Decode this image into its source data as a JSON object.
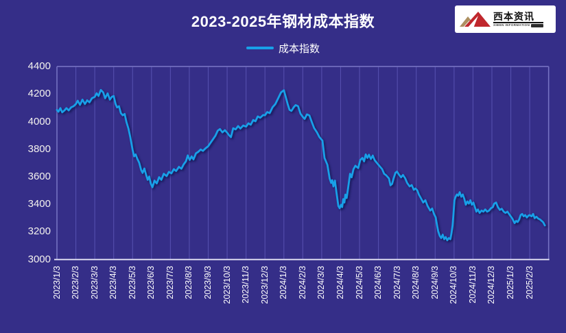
{
  "header": {
    "title": "2023-2025年钢材成本指数"
  },
  "legend": {
    "label": "成本指数"
  },
  "logo": {
    "name_zh": "西本资讯",
    "name_en": "XIBEN INFORMATION"
  },
  "colors": {
    "background": "#352E88",
    "gridline": "#554FAE",
    "plot_border": "#7672C2",
    "axis_line": "#DCDAF0",
    "text": "#FFFFFF",
    "line": "#18A0E8",
    "logo_red": "#C0272D",
    "logo_tan": "#AD9061"
  },
  "chart_data": {
    "type": "line",
    "title": "2023-2025年钢材成本指数",
    "xlabel": "",
    "ylabel": "",
    "ylim": [
      3000,
      4400
    ],
    "ytick_step": 200,
    "yticks": [
      4400,
      4200,
      4000,
      3800,
      3600,
      3400,
      3200,
      3000
    ],
    "grid": "vertical-monthly-only",
    "legend_position": "top-center",
    "categories": [
      "2023/1/3",
      "2023/2/3",
      "2023/3/3",
      "2023/4/3",
      "2023/5/3",
      "2023/6/3",
      "2023/7/3",
      "2023/8/3",
      "2023/9/3",
      "2023/10/3",
      "2023/11/3",
      "2023/12/3",
      "2024/1/3",
      "2024/2/3",
      "2024/3/3",
      "2024/4/3",
      "2024/5/3",
      "2024/6/3",
      "2024/7/3",
      "2024/8/3",
      "2024/9/3",
      "2024/10/3",
      "2024/11/3",
      "2024/12/3",
      "2025/1/3",
      "2025/2/3"
    ],
    "x_unit": "month-index, 0 = 2023/1/3, daily data approximated",
    "series": [
      {
        "name": "成本指数",
        "color": "#18A0E8",
        "points": [
          [
            0,
            4085
          ],
          [
            0.08,
            4072
          ],
          [
            0.18,
            4098
          ],
          [
            0.28,
            4068
          ],
          [
            0.4,
            4082
          ],
          [
            0.5,
            4098
          ],
          [
            0.62,
            4082
          ],
          [
            0.75,
            4104
          ],
          [
            0.88,
            4112
          ],
          [
            1,
            4128
          ],
          [
            1.1,
            4152
          ],
          [
            1.22,
            4122
          ],
          [
            1.35,
            4160
          ],
          [
            1.48,
            4128
          ],
          [
            1.6,
            4155
          ],
          [
            1.72,
            4140
          ],
          [
            1.85,
            4170
          ],
          [
            2,
            4180
          ],
          [
            2.1,
            4206
          ],
          [
            2.2,
            4186
          ],
          [
            2.32,
            4230
          ],
          [
            2.45,
            4212
          ],
          [
            2.55,
            4170
          ],
          [
            2.68,
            4205
          ],
          [
            2.8,
            4160
          ],
          [
            2.9,
            4180
          ],
          [
            3,
            4186
          ],
          [
            3.1,
            4128
          ],
          [
            3.18,
            4103
          ],
          [
            3.28,
            4112
          ],
          [
            3.38,
            4062
          ],
          [
            3.48,
            4046
          ],
          [
            3.58,
            4056
          ],
          [
            3.68,
            3996
          ],
          [
            3.78,
            3950
          ],
          [
            3.88,
            3885
          ],
          [
            4,
            3795
          ],
          [
            4.08,
            3748
          ],
          [
            4.16,
            3762
          ],
          [
            4.25,
            3730
          ],
          [
            4.35,
            3702
          ],
          [
            4.45,
            3650
          ],
          [
            4.53,
            3628
          ],
          [
            4.62,
            3660
          ],
          [
            4.72,
            3612
          ],
          [
            4.8,
            3578
          ],
          [
            4.88,
            3602
          ],
          [
            4.96,
            3552
          ],
          [
            5.05,
            3524
          ],
          [
            5.16,
            3572
          ],
          [
            5.28,
            3552
          ],
          [
            5.4,
            3597
          ],
          [
            5.52,
            3578
          ],
          [
            5.65,
            3622
          ],
          [
            5.8,
            3605
          ],
          [
            5.92,
            3636
          ],
          [
            6.05,
            3625
          ],
          [
            6.18,
            3656
          ],
          [
            6.3,
            3642
          ],
          [
            6.45,
            3672
          ],
          [
            6.58,
            3658
          ],
          [
            6.7,
            3690
          ],
          [
            6.82,
            3712
          ],
          [
            6.92,
            3755
          ],
          [
            7.02,
            3722
          ],
          [
            7.12,
            3748
          ],
          [
            7.22,
            3726
          ],
          [
            7.35,
            3770
          ],
          [
            7.48,
            3782
          ],
          [
            7.6,
            3798
          ],
          [
            7.72,
            3788
          ],
          [
            7.85,
            3806
          ],
          [
            8,
            3822
          ],
          [
            8.12,
            3846
          ],
          [
            8.25,
            3872
          ],
          [
            8.38,
            3898
          ],
          [
            8.5,
            3934
          ],
          [
            8.62,
            3946
          ],
          [
            8.75,
            3922
          ],
          [
            8.88,
            3938
          ],
          [
            9,
            3920
          ],
          [
            9.1,
            3902
          ],
          [
            9.2,
            3888
          ],
          [
            9.32,
            3952
          ],
          [
            9.45,
            3944
          ],
          [
            9.58,
            3968
          ],
          [
            9.7,
            3950
          ],
          [
            9.85,
            3972
          ],
          [
            10,
            3964
          ],
          [
            10.12,
            3988
          ],
          [
            10.25,
            3978
          ],
          [
            10.38,
            4012
          ],
          [
            10.5,
            4003
          ],
          [
            10.62,
            4038
          ],
          [
            10.75,
            4028
          ],
          [
            10.9,
            4048
          ],
          [
            11,
            4046
          ],
          [
            11.12,
            4070
          ],
          [
            11.25,
            4062
          ],
          [
            11.4,
            4104
          ],
          [
            11.55,
            4128
          ],
          [
            11.7,
            4170
          ],
          [
            11.85,
            4212
          ],
          [
            12,
            4228
          ],
          [
            12.08,
            4188
          ],
          [
            12.2,
            4128
          ],
          [
            12.3,
            4086
          ],
          [
            12.4,
            4078
          ],
          [
            12.52,
            4104
          ],
          [
            12.62,
            4120
          ],
          [
            12.75,
            4112
          ],
          [
            12.88,
            4058
          ],
          [
            13,
            4035
          ],
          [
            13.1,
            4020
          ],
          [
            13.22,
            4053
          ],
          [
            13.35,
            4045
          ],
          [
            13.48,
            3996
          ],
          [
            13.6,
            3953
          ],
          [
            13.75,
            3922
          ],
          [
            13.88,
            3888
          ],
          [
            14.04,
            3862
          ],
          [
            14.15,
            3737
          ],
          [
            14.3,
            3687
          ],
          [
            14.42,
            3588
          ],
          [
            14.5,
            3555
          ],
          [
            14.56,
            3575
          ],
          [
            14.62,
            3530
          ],
          [
            14.7,
            3572
          ],
          [
            14.78,
            3488
          ],
          [
            14.88,
            3388
          ],
          [
            14.95,
            3372
          ],
          [
            15.02,
            3397
          ],
          [
            15.08,
            3380
          ],
          [
            15.14,
            3438
          ],
          [
            15.2,
            3413
          ],
          [
            15.25,
            3471
          ],
          [
            15.32,
            3446
          ],
          [
            15.4,
            3522
          ],
          [
            15.5,
            3622
          ],
          [
            15.58,
            3596
          ],
          [
            15.68,
            3655
          ],
          [
            15.78,
            3680
          ],
          [
            15.93,
            3663
          ],
          [
            16.04,
            3722
          ],
          [
            16.15,
            3737
          ],
          [
            16.24,
            3712
          ],
          [
            16.33,
            3762
          ],
          [
            16.42,
            3737
          ],
          [
            16.5,
            3760
          ],
          [
            16.6,
            3729
          ],
          [
            16.7,
            3754
          ],
          [
            16.8,
            3721
          ],
          [
            16.9,
            3704
          ],
          [
            17.05,
            3679
          ],
          [
            17.2,
            3655
          ],
          [
            17.3,
            3622
          ],
          [
            17.4,
            3612
          ],
          [
            17.56,
            3588
          ],
          [
            17.64,
            3538
          ],
          [
            17.72,
            3548
          ],
          [
            17.8,
            3588
          ],
          [
            17.9,
            3629
          ],
          [
            17.98,
            3638
          ],
          [
            18.1,
            3613
          ],
          [
            18.2,
            3596
          ],
          [
            18.3,
            3613
          ],
          [
            18.42,
            3588
          ],
          [
            18.52,
            3555
          ],
          [
            18.65,
            3530
          ],
          [
            18.76,
            3540
          ],
          [
            18.87,
            3505
          ],
          [
            18.96,
            3515
          ],
          [
            19.05,
            3502
          ],
          [
            19.14,
            3471
          ],
          [
            19.24,
            3446
          ],
          [
            19.37,
            3413
          ],
          [
            19.48,
            3430
          ],
          [
            19.6,
            3388
          ],
          [
            19.74,
            3355
          ],
          [
            19.84,
            3370
          ],
          [
            19.94,
            3330
          ],
          [
            20.03,
            3305
          ],
          [
            20.1,
            3246
          ],
          [
            20.16,
            3205
          ],
          [
            20.24,
            3172
          ],
          [
            20.32,
            3155
          ],
          [
            20.4,
            3180
          ],
          [
            20.48,
            3147
          ],
          [
            20.56,
            3163
          ],
          [
            20.64,
            3139
          ],
          [
            20.72,
            3155
          ],
          [
            20.8,
            3147
          ],
          [
            20.86,
            3188
          ],
          [
            20.92,
            3247
          ],
          [
            20.97,
            3330
          ],
          [
            21.02,
            3430
          ],
          [
            21.08,
            3455
          ],
          [
            21.15,
            3472
          ],
          [
            21.22,
            3463
          ],
          [
            21.3,
            3488
          ],
          [
            21.38,
            3455
          ],
          [
            21.46,
            3472
          ],
          [
            21.54,
            3440
          ],
          [
            21.62,
            3397
          ],
          [
            21.7,
            3421
          ],
          [
            21.78,
            3405
          ],
          [
            21.86,
            3430
          ],
          [
            21.94,
            3397
          ],
          [
            22.02,
            3413
          ],
          [
            22.1,
            3380
          ],
          [
            22.18,
            3347
          ],
          [
            22.26,
            3363
          ],
          [
            22.35,
            3338
          ],
          [
            22.45,
            3355
          ],
          [
            22.55,
            3347
          ],
          [
            22.65,
            3363
          ],
          [
            22.75,
            3347
          ],
          [
            22.85,
            3355
          ],
          [
            22.95,
            3372
          ],
          [
            23.05,
            3380
          ],
          [
            23.12,
            3405
          ],
          [
            23.22,
            3413
          ],
          [
            23.32,
            3380
          ],
          [
            23.42,
            3360
          ],
          [
            23.52,
            3368
          ],
          [
            23.62,
            3348
          ],
          [
            23.72,
            3338
          ],
          [
            23.82,
            3347
          ],
          [
            23.95,
            3322
          ],
          [
            24.08,
            3297
          ],
          [
            24.2,
            3264
          ],
          [
            24.28,
            3280
          ],
          [
            24.36,
            3272
          ],
          [
            24.44,
            3290
          ],
          [
            24.52,
            3322
          ],
          [
            24.6,
            3330
          ],
          [
            24.68,
            3313
          ],
          [
            24.76,
            3322
          ],
          [
            24.85,
            3305
          ],
          [
            24.93,
            3318
          ],
          [
            25,
            3322
          ],
          [
            25.1,
            3313
          ],
          [
            25.18,
            3330
          ],
          [
            25.26,
            3300
          ],
          [
            25.35,
            3310
          ],
          [
            25.45,
            3297
          ],
          [
            25.55,
            3290
          ],
          [
            25.65,
            3278
          ],
          [
            25.72,
            3268
          ],
          [
            25.8,
            3247
          ]
        ]
      }
    ]
  }
}
